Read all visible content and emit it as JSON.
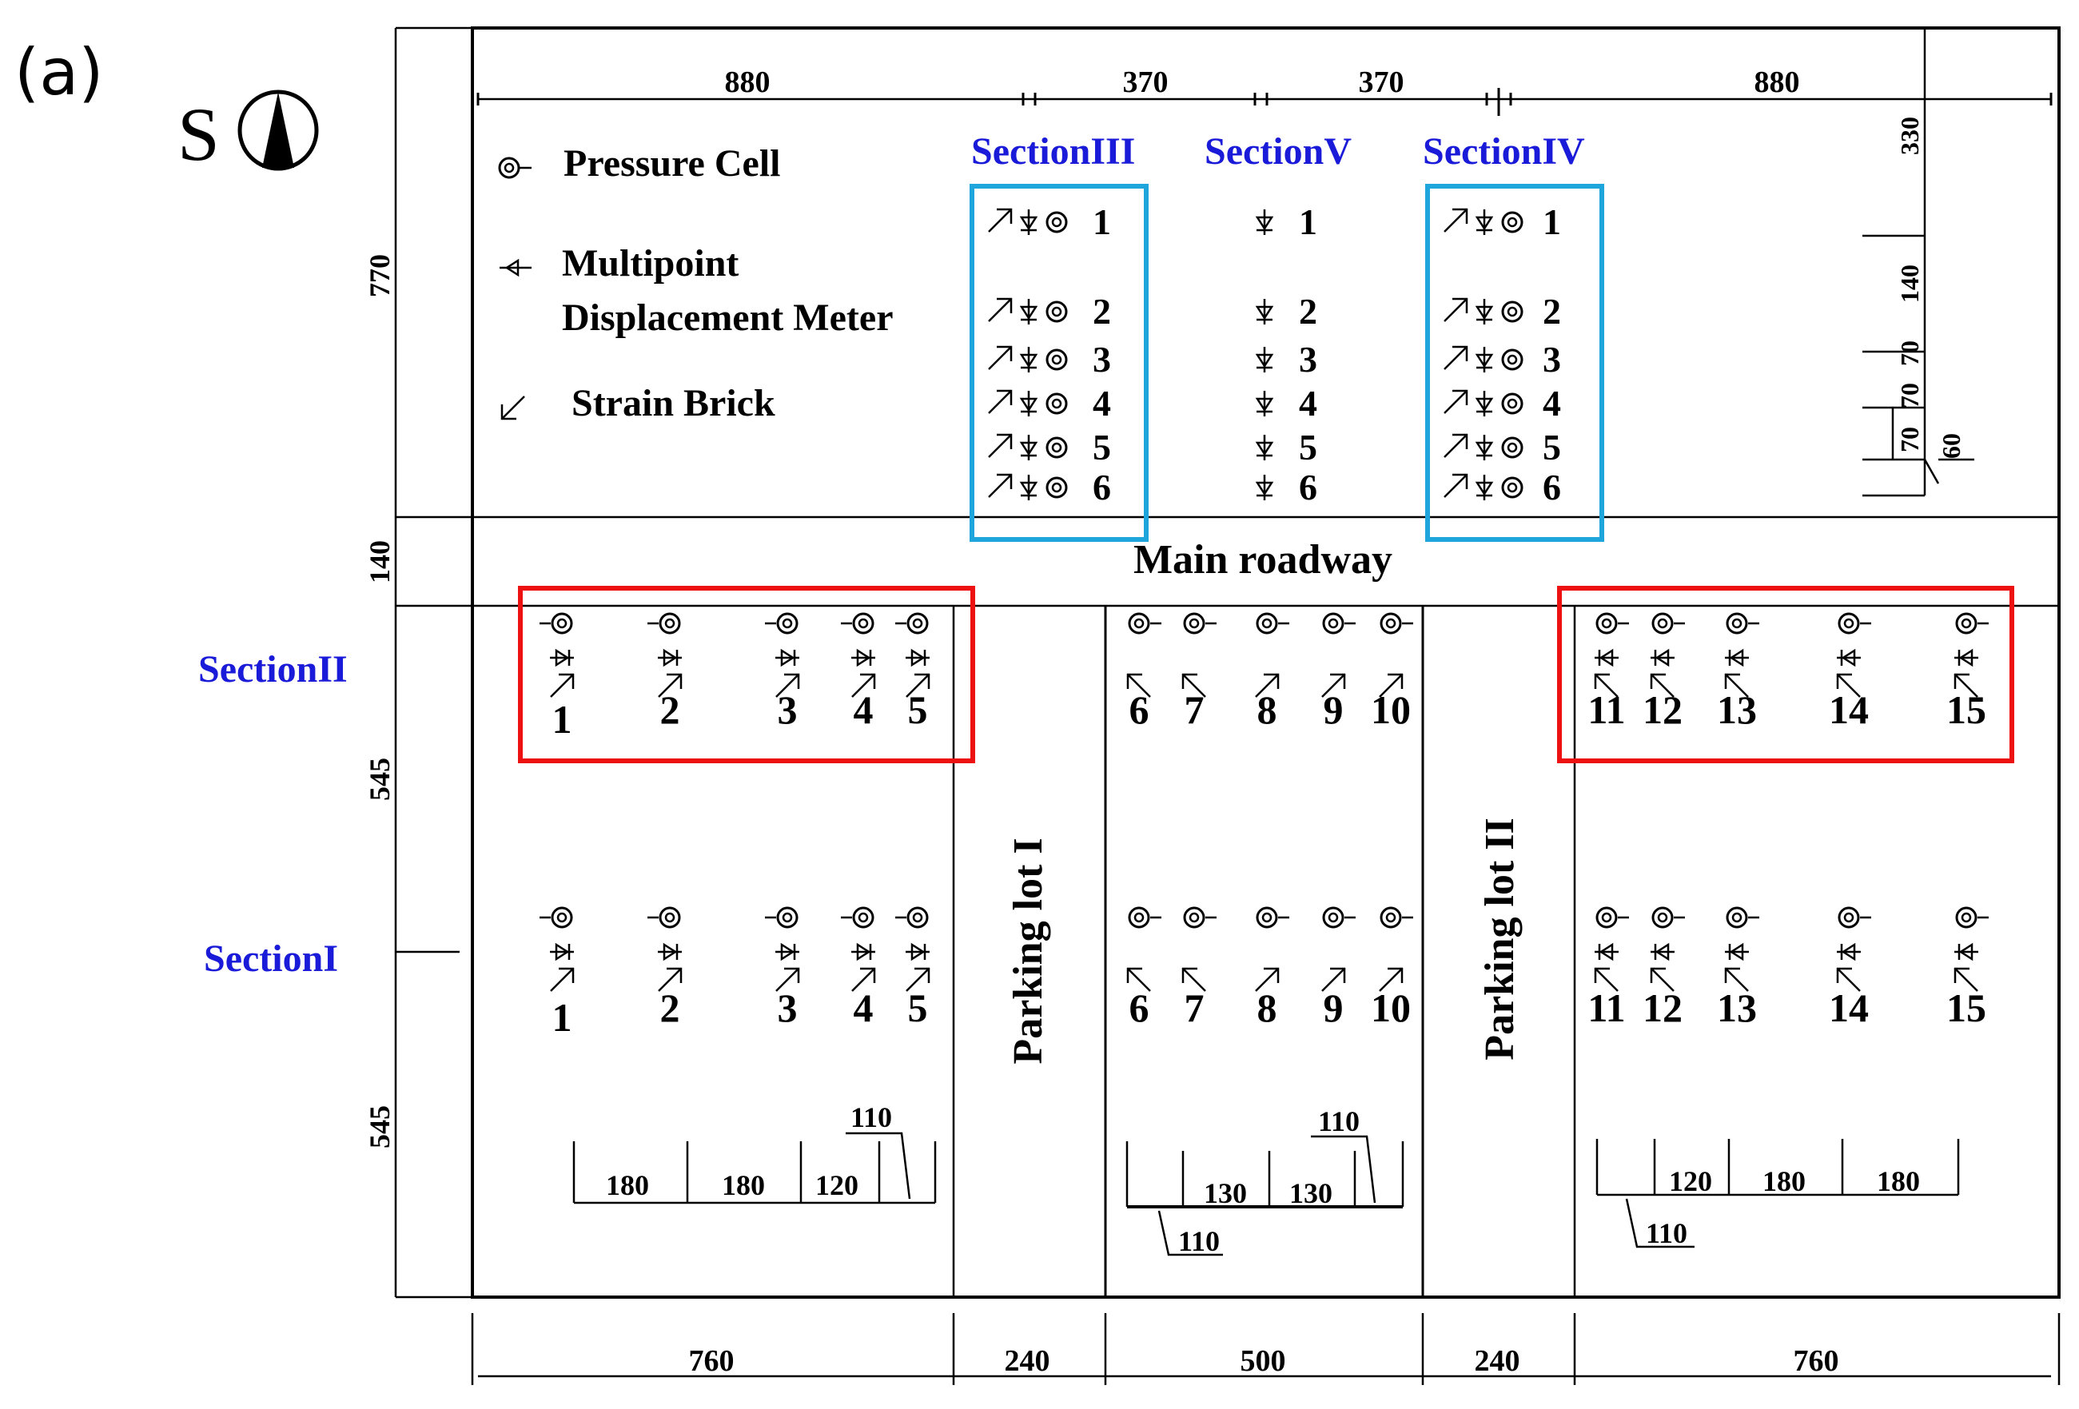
{
  "panel_label": "(a)",
  "compass_label": "S",
  "colors": {
    "ink": "#000000",
    "section_blue": "#1a1ad9",
    "highlight_red": "#ee1111",
    "highlight_cyan": "#1ea5dc"
  },
  "legend": {
    "pressure_cell": "Pressure Cell",
    "multipoint_line1": "Multipoint",
    "multipoint_line2": "Displacement Meter",
    "strain_brick": "Strain Brick"
  },
  "sections": {
    "s1": "SectionI",
    "s2": "SectionII",
    "s3": "SectionIII",
    "s4": "SectionIV",
    "s5": "SectionV"
  },
  "areas": {
    "main_roadway": "Main roadway",
    "parking_lot_1": "Parking lot I",
    "parking_lot_2": "Parking lot II"
  },
  "dims_top": [
    "880",
    "370",
    "370",
    "880"
  ],
  "dims_bottom": [
    "760",
    "240",
    "500",
    "240",
    "760"
  ],
  "dims_left": [
    "770",
    "140",
    "545",
    "545"
  ],
  "dims_right": [
    "330",
    "140",
    "70",
    "70",
    "70",
    "60"
  ],
  "dims_spacing_left": [
    "180",
    "180",
    "120",
    "110"
  ],
  "dims_spacing_mid": [
    "130",
    "130",
    "110",
    "110"
  ],
  "dims_spacing_right": [
    "120",
    "180",
    "180",
    "110"
  ],
  "point_numbers": [
    "1",
    "2",
    "3",
    "4",
    "5",
    "6",
    "7",
    "8",
    "9",
    "10",
    "11",
    "12",
    "13",
    "14",
    "15"
  ],
  "column_numbers": [
    "1",
    "2",
    "3",
    "4",
    "5",
    "6"
  ]
}
